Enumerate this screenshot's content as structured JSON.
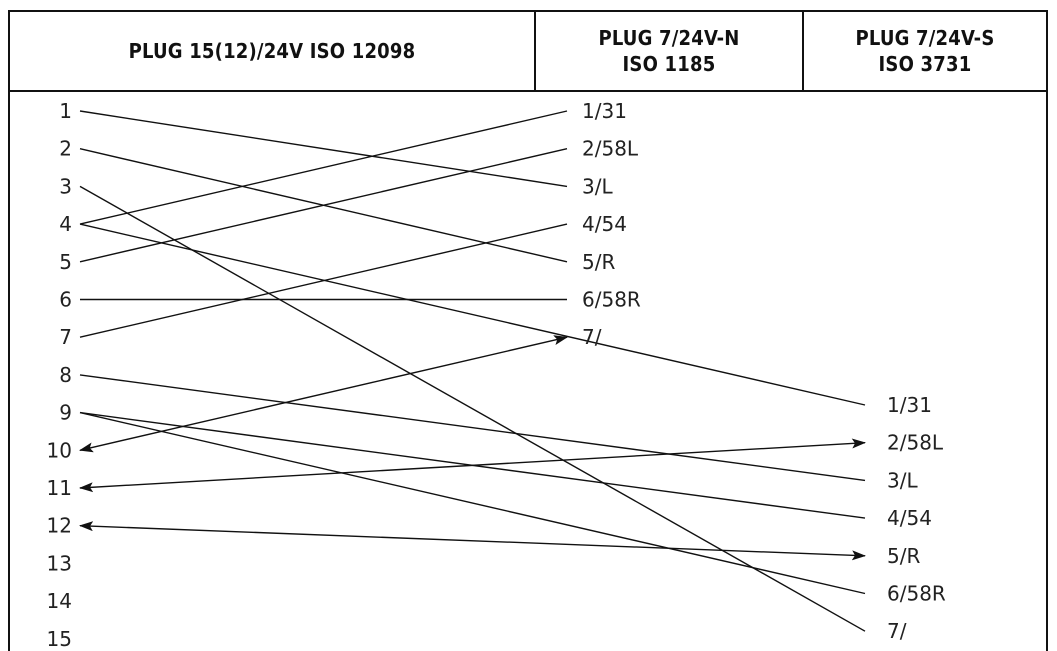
{
  "headers": {
    "col1": "PLUG 15(12)/24V ISO 12098",
    "col2": "PLUG 7/24V-N\nISO 1185",
    "col3": "PLUG 7/24V-S\nISO 3731"
  },
  "left_pins": [
    "1",
    "2",
    "3",
    "4",
    "5",
    "6",
    "7",
    "8",
    "9",
    "10",
    "11",
    "12",
    "13",
    "14",
    "15"
  ],
  "n_pins": [
    "1/31",
    "2/58L",
    "3/L",
    "4/54",
    "5/R",
    "6/58R",
    "7/"
  ],
  "s_pins": [
    "1/31",
    "2/58L",
    "3/L",
    "4/54",
    "5/R",
    "6/58R",
    "7/"
  ],
  "connections": [
    {
      "from": "1",
      "plug": "N",
      "to": "3/L",
      "arrow": "none"
    },
    {
      "from": "2",
      "plug": "N",
      "to": "5/R",
      "arrow": "none"
    },
    {
      "from": "3",
      "plug": "S",
      "to": "7/",
      "arrow": "none"
    },
    {
      "from": "4",
      "plug": "N",
      "to": "1/31",
      "arrow": "none"
    },
    {
      "from": "4",
      "plug": "S",
      "to": "1/31",
      "arrow": "none"
    },
    {
      "from": "5",
      "plug": "N",
      "to": "2/58L",
      "arrow": "none"
    },
    {
      "from": "6",
      "plug": "N",
      "to": "6/58R",
      "arrow": "none"
    },
    {
      "from": "7",
      "plug": "N",
      "to": "4/54",
      "arrow": "none"
    },
    {
      "from": "8",
      "plug": "S",
      "to": "3/L",
      "arrow": "none"
    },
    {
      "from": "9",
      "plug": "S",
      "to": "4/54",
      "arrow": "none"
    },
    {
      "from": "9",
      "plug": "S",
      "to": "6/58R",
      "arrow": "none"
    },
    {
      "from": "10",
      "plug": "N",
      "to": "7/",
      "arrow": "both"
    },
    {
      "from": "11",
      "plug": "S",
      "to": "2/58L",
      "arrow": "both"
    },
    {
      "from": "12",
      "plug": "S",
      "to": "5/R",
      "arrow": "both"
    }
  ],
  "colors": {
    "line": "#111111",
    "text": "#222222",
    "background": "#ffffff"
  }
}
